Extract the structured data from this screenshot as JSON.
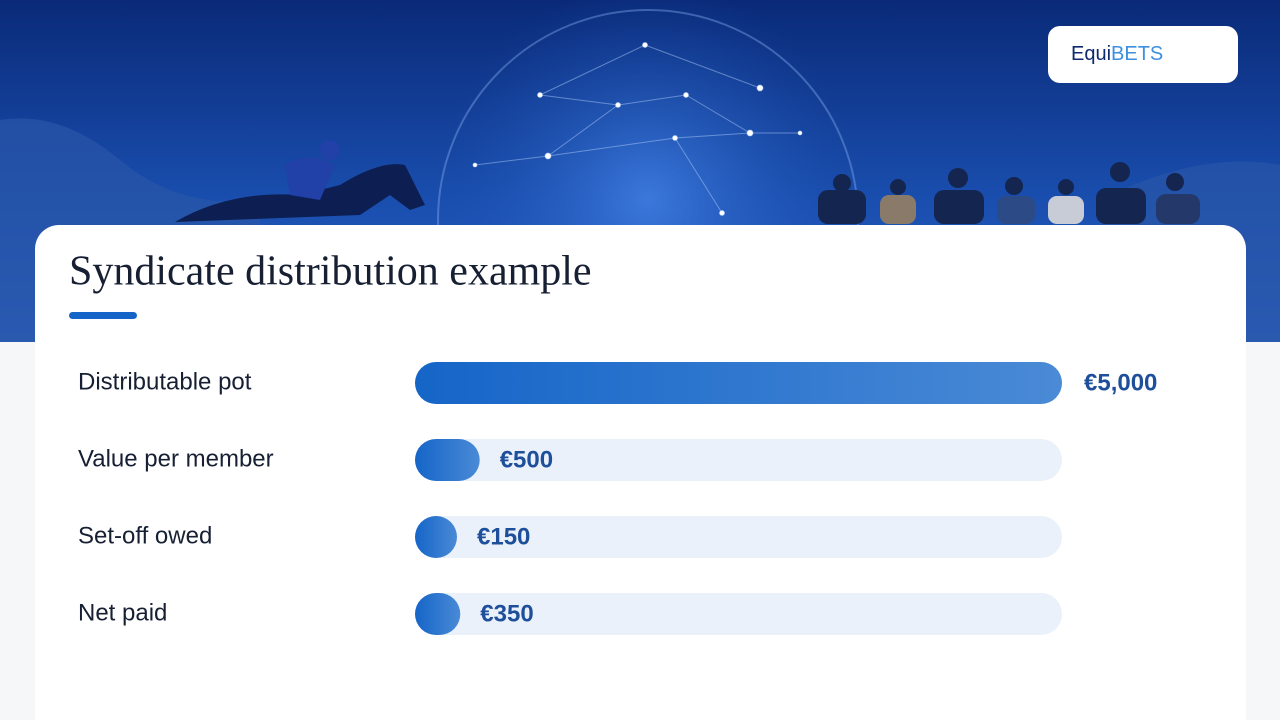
{
  "brand": {
    "prefix": "Equi",
    "suffix": "BETS"
  },
  "chart_data": {
    "type": "bar",
    "orientation": "horizontal",
    "title": "Syndicate distribution example",
    "categories": [
      "Distributable pot",
      "Value per member",
      "Set-off owed",
      "Net paid"
    ],
    "values": [
      5000,
      500,
      150,
      350
    ],
    "value_labels": [
      "€5,000",
      "€500",
      "€150",
      "€350"
    ],
    "color": "#1565c8",
    "xlim": [
      0,
      5000
    ]
  }
}
